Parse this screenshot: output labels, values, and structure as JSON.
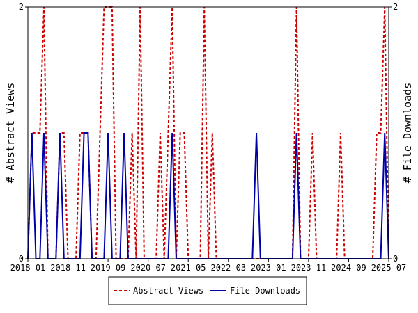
{
  "chart_data": {
    "type": "line",
    "ylabel_left": "# Abstract Views",
    "ylabel_right": "# File Downloads",
    "ylim": [
      0,
      2
    ],
    "y_ticks": [
      "0",
      "2"
    ],
    "x_start": "2018-01",
    "x_end": "2025-07",
    "x_ticks": [
      "2018-01",
      "2018-11",
      "2019-09",
      "2020-07",
      "2021-05",
      "2022-03",
      "2023-01",
      "2023-11",
      "2024-09",
      "2025-07"
    ],
    "legend_position": "bottom-center",
    "series": [
      {
        "name": "Abstract Views",
        "color": "#cc0000",
        "style": "dashed",
        "points": [
          [
            "2018-01",
            0
          ],
          [
            "2018-02",
            1
          ],
          [
            "2018-03",
            1
          ],
          [
            "2018-04",
            1
          ],
          [
            "2018-05",
            2
          ],
          [
            "2018-06",
            0
          ],
          [
            "2018-07",
            0
          ],
          [
            "2018-08",
            0
          ],
          [
            "2018-09",
            1
          ],
          [
            "2018-10",
            1
          ],
          [
            "2018-11",
            0
          ],
          [
            "2018-12",
            0
          ],
          [
            "2019-01",
            0
          ],
          [
            "2019-02",
            1
          ],
          [
            "2019-03",
            1
          ],
          [
            "2019-04",
            1
          ],
          [
            "2019-05",
            0
          ],
          [
            "2019-06",
            0
          ],
          [
            "2019-07",
            1
          ],
          [
            "2019-08",
            2
          ],
          [
            "2019-09",
            2
          ],
          [
            "2019-10",
            2
          ],
          [
            "2019-11",
            0
          ],
          [
            "2019-12",
            0
          ],
          [
            "2020-01",
            0
          ],
          [
            "2020-02",
            0
          ],
          [
            "2020-03",
            1
          ],
          [
            "2020-04",
            0
          ],
          [
            "2020-05",
            2
          ],
          [
            "2020-06",
            0
          ],
          [
            "2020-07",
            0
          ],
          [
            "2020-08",
            0
          ],
          [
            "2020-09",
            0
          ],
          [
            "2020-10",
            1
          ],
          [
            "2020-11",
            0
          ],
          [
            "2020-12",
            1
          ],
          [
            "2021-01",
            2
          ],
          [
            "2021-02",
            0
          ],
          [
            "2021-03",
            1
          ],
          [
            "2021-04",
            1
          ],
          [
            "2021-05",
            0
          ],
          [
            "2021-06",
            0
          ],
          [
            "2021-07",
            0
          ],
          [
            "2021-08",
            0
          ],
          [
            "2021-09",
            2
          ],
          [
            "2021-10",
            0
          ],
          [
            "2021-11",
            1
          ],
          [
            "2021-12",
            0
          ],
          [
            "2022-01",
            0
          ],
          [
            "2022-02",
            0
          ],
          [
            "2022-03",
            0
          ],
          [
            "2022-04",
            0
          ],
          [
            "2022-05",
            0
          ],
          [
            "2022-06",
            0
          ],
          [
            "2022-07",
            0
          ],
          [
            "2022-08",
            0
          ],
          [
            "2022-09",
            0
          ],
          [
            "2022-10",
            0
          ],
          [
            "2022-11",
            0
          ],
          [
            "2022-12",
            0
          ],
          [
            "2023-01",
            0
          ],
          [
            "2023-02",
            0
          ],
          [
            "2023-03",
            0
          ],
          [
            "2023-04",
            0
          ],
          [
            "2023-05",
            0
          ],
          [
            "2023-06",
            0
          ],
          [
            "2023-07",
            0
          ],
          [
            "2023-08",
            2
          ],
          [
            "2023-09",
            0
          ],
          [
            "2023-10",
            0
          ],
          [
            "2023-11",
            0
          ],
          [
            "2023-12",
            1
          ],
          [
            "2024-01",
            0
          ],
          [
            "2024-02",
            0
          ],
          [
            "2024-03",
            0
          ],
          [
            "2024-04",
            0
          ],
          [
            "2024-05",
            0
          ],
          [
            "2024-06",
            0
          ],
          [
            "2024-07",
            1
          ],
          [
            "2024-08",
            0
          ],
          [
            "2024-09",
            0
          ],
          [
            "2024-10",
            0
          ],
          [
            "2024-11",
            0
          ],
          [
            "2024-12",
            0
          ],
          [
            "2025-01",
            0
          ],
          [
            "2025-02",
            0
          ],
          [
            "2025-03",
            0
          ],
          [
            "2025-04",
            1
          ],
          [
            "2025-05",
            1
          ],
          [
            "2025-06",
            2
          ],
          [
            "2025-07",
            0
          ]
        ]
      },
      {
        "name": "File Downloads",
        "color": "#0000aa",
        "style": "solid",
        "points": [
          [
            "2018-01",
            0
          ],
          [
            "2018-02",
            1
          ],
          [
            "2018-03",
            0
          ],
          [
            "2018-04",
            0
          ],
          [
            "2018-05",
            1
          ],
          [
            "2018-06",
            0
          ],
          [
            "2018-07",
            0
          ],
          [
            "2018-08",
            0
          ],
          [
            "2018-09",
            1
          ],
          [
            "2018-10",
            0
          ],
          [
            "2018-11",
            0
          ],
          [
            "2018-12",
            0
          ],
          [
            "2019-01",
            0
          ],
          [
            "2019-02",
            0
          ],
          [
            "2019-03",
            1
          ],
          [
            "2019-04",
            1
          ],
          [
            "2019-05",
            0
          ],
          [
            "2019-06",
            0
          ],
          [
            "2019-07",
            0
          ],
          [
            "2019-08",
            0
          ],
          [
            "2019-09",
            1
          ],
          [
            "2019-10",
            0
          ],
          [
            "2019-11",
            0
          ],
          [
            "2019-12",
            0
          ],
          [
            "2020-01",
            1
          ],
          [
            "2020-02",
            0
          ],
          [
            "2020-03",
            0
          ],
          [
            "2020-04",
            0
          ],
          [
            "2020-05",
            0
          ],
          [
            "2020-06",
            0
          ],
          [
            "2020-07",
            0
          ],
          [
            "2020-08",
            0
          ],
          [
            "2020-09",
            0
          ],
          [
            "2020-10",
            0
          ],
          [
            "2020-11",
            0
          ],
          [
            "2020-12",
            0
          ],
          [
            "2021-01",
            1
          ],
          [
            "2021-02",
            0
          ],
          [
            "2021-03",
            0
          ],
          [
            "2021-04",
            0
          ],
          [
            "2021-05",
            0
          ],
          [
            "2021-06",
            0
          ],
          [
            "2021-07",
            0
          ],
          [
            "2021-08",
            0
          ],
          [
            "2021-09",
            0
          ],
          [
            "2021-10",
            0
          ],
          [
            "2021-11",
            0
          ],
          [
            "2021-12",
            0
          ],
          [
            "2022-01",
            0
          ],
          [
            "2022-02",
            0
          ],
          [
            "2022-03",
            0
          ],
          [
            "2022-04",
            0
          ],
          [
            "2022-05",
            0
          ],
          [
            "2022-06",
            0
          ],
          [
            "2022-07",
            0
          ],
          [
            "2022-08",
            0
          ],
          [
            "2022-09",
            0
          ],
          [
            "2022-10",
            1
          ],
          [
            "2022-11",
            0
          ],
          [
            "2022-12",
            0
          ],
          [
            "2023-01",
            0
          ],
          [
            "2023-02",
            0
          ],
          [
            "2023-03",
            0
          ],
          [
            "2023-04",
            0
          ],
          [
            "2023-05",
            0
          ],
          [
            "2023-06",
            0
          ],
          [
            "2023-07",
            0
          ],
          [
            "2023-08",
            1
          ],
          [
            "2023-09",
            0
          ],
          [
            "2023-10",
            0
          ],
          [
            "2023-11",
            0
          ],
          [
            "2023-12",
            0
          ],
          [
            "2024-01",
            0
          ],
          [
            "2024-02",
            0
          ],
          [
            "2024-03",
            0
          ],
          [
            "2024-04",
            0
          ],
          [
            "2024-05",
            0
          ],
          [
            "2024-06",
            0
          ],
          [
            "2024-07",
            0
          ],
          [
            "2024-08",
            0
          ],
          [
            "2024-09",
            0
          ],
          [
            "2024-10",
            0
          ],
          [
            "2024-11",
            0
          ],
          [
            "2024-12",
            0
          ],
          [
            "2025-01",
            0
          ],
          [
            "2025-02",
            0
          ],
          [
            "2025-03",
            0
          ],
          [
            "2025-04",
            0
          ],
          [
            "2025-05",
            0
          ],
          [
            "2025-06",
            1
          ],
          [
            "2025-07",
            0
          ]
        ]
      }
    ]
  }
}
